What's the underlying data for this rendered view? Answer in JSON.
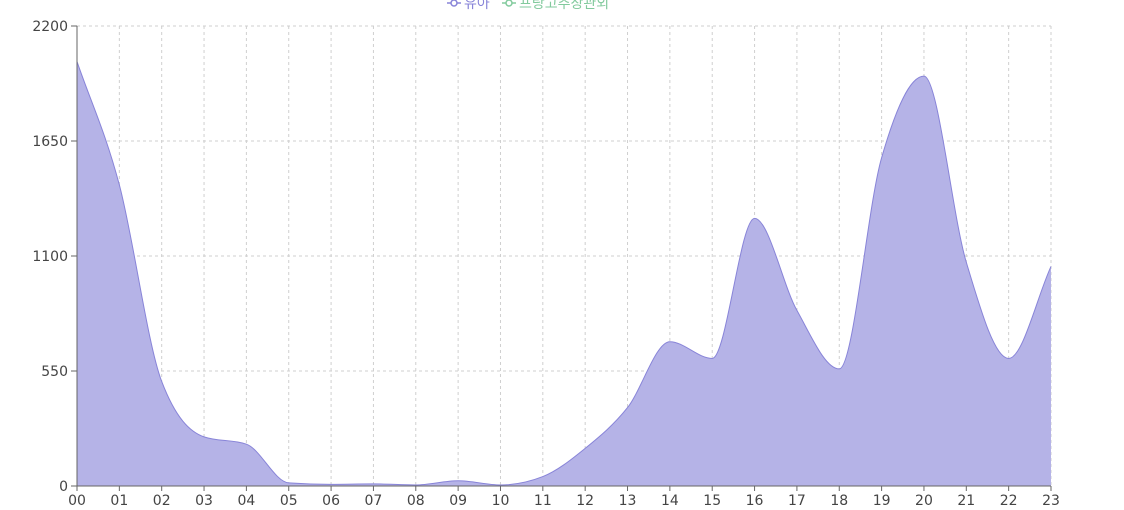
{
  "chart_data": {
    "type": "area",
    "legend": {
      "placement": "top-center",
      "items": [
        {
          "label": "유아",
          "color": "#8884d8"
        },
        {
          "label": "프랑고추장관외",
          "color": "#82ca9d"
        }
      ]
    },
    "categories": [
      "00",
      "01",
      "02",
      "03",
      "04",
      "05",
      "06",
      "07",
      "08",
      "09",
      "10",
      "11",
      "12",
      "13",
      "14",
      "15",
      "16",
      "17",
      "18",
      "19",
      "20",
      "21",
      "22",
      "23"
    ],
    "ylim": [
      0,
      2200
    ],
    "yticks": [
      "0",
      "550",
      "1100",
      "1650",
      "2200"
    ],
    "grid": true,
    "series": [
      {
        "name": "유아",
        "color": "#8884d8",
        "fill": "#b5b3e7",
        "values": [
          2030,
          1440,
          500,
          235,
          200,
          15,
          8,
          10,
          5,
          25,
          5,
          45,
          180,
          375,
          690,
          610,
          1280,
          840,
          560,
          1570,
          1960,
          1070,
          610,
          1050
        ]
      }
    ]
  }
}
